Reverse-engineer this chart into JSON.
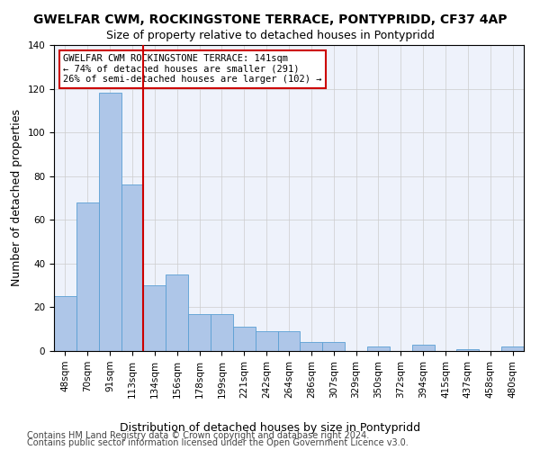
{
  "title": "GWELFAR CWM, ROCKINGSTONE TERRACE, PONTYPRIDD, CF37 4AP",
  "subtitle": "Size of property relative to detached houses in Pontypridd",
  "xlabel": "Distribution of detached houses by size in Pontypridd",
  "ylabel": "Number of detached properties",
  "bar_values": [
    25,
    68,
    118,
    76,
    30,
    35,
    17,
    17,
    11,
    9,
    9,
    4,
    4,
    0,
    2,
    0,
    3,
    0,
    1,
    0,
    2
  ],
  "bar_labels": [
    "48sqm",
    "70sqm",
    "91sqm",
    "113sqm",
    "134sqm",
    "156sqm",
    "178sqm",
    "199sqm",
    "221sqm",
    "242sqm",
    "264sqm",
    "286sqm",
    "307sqm",
    "329sqm",
    "350sqm",
    "372sqm",
    "394sqm",
    "415sqm",
    "437sqm",
    "458sqm",
    "480sqm"
  ],
  "bar_color": "#aec6e8",
  "bar_edge_color": "#5a9fd4",
  "vline_color": "#cc0000",
  "annotation_box_text": "GWELFAR CWM ROCKINGSTONE TERRACE: 141sqm\n← 74% of detached houses are smaller (291)\n26% of semi-detached houses are larger (102) →",
  "annotation_box_facecolor": "white",
  "annotation_box_edgecolor": "#cc0000",
  "ylim": [
    0,
    140
  ],
  "yticks": [
    0,
    20,
    40,
    60,
    80,
    100,
    120,
    140
  ],
  "grid_color": "#cccccc",
  "background_color": "#eef2fb",
  "footer_line1": "Contains HM Land Registry data © Crown copyright and database right 2024.",
  "footer_line2": "Contains public sector information licensed under the Open Government Licence v3.0.",
  "title_fontsize": 10,
  "subtitle_fontsize": 9,
  "xlabel_fontsize": 9,
  "ylabel_fontsize": 9,
  "tick_fontsize": 7.5,
  "footer_fontsize": 7
}
